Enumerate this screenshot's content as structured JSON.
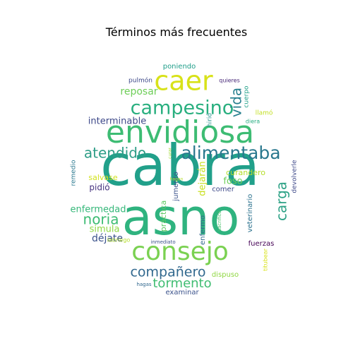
{
  "chart_data": {
    "type": "wordcloud",
    "title": "Términos más frecuentes",
    "words": [
      {
        "text": "cabra",
        "color": "#21a08a"
      },
      {
        "text": "asno",
        "color": "#2fb37f"
      },
      {
        "text": "envidiosa",
        "color": "#3dbc73"
      },
      {
        "text": "consejo",
        "color": "#7ad151"
      },
      {
        "text": "caer",
        "color": "#d8e219"
      },
      {
        "text": "campesino",
        "color": "#29af7f"
      },
      {
        "text": "alimentaba",
        "color": "#2a788e"
      },
      {
        "text": "atendido",
        "color": "#2e9d87"
      },
      {
        "text": "compañero",
        "color": "#31688e"
      },
      {
        "text": "noria",
        "color": "#3dbc73"
      },
      {
        "text": "carga",
        "color": "#2ea286"
      },
      {
        "text": "tormento",
        "color": "#40bd72"
      },
      {
        "text": "vida",
        "color": "#277f8e"
      },
      {
        "text": "interminable",
        "color": "#3e4989"
      },
      {
        "text": "reposar",
        "color": "#6ece58"
      },
      {
        "text": "enfermedad",
        "color": "#35b779"
      },
      {
        "text": "simula",
        "color": "#8fd744"
      },
      {
        "text": "déjate",
        "color": "#3b528b"
      },
      {
        "text": "dejarán",
        "color": "#c8e020"
      },
      {
        "text": "curandero",
        "color": "#b5de2b"
      },
      {
        "text": "foso",
        "color": "#6ece58"
      },
      {
        "text": "salvase",
        "color": "#d2e21b"
      },
      {
        "text": "pidió",
        "color": "#46327e"
      },
      {
        "text": "remedio",
        "color": "#2a788e"
      },
      {
        "text": "jumento",
        "color": "#3b528b"
      },
      {
        "text": "práctica",
        "color": "#5ec962"
      },
      {
        "text": "enfermo",
        "color": "#31688e"
      },
      {
        "text": "comer",
        "color": "#3e4989"
      },
      {
        "text": "veterinario",
        "color": "#2c728e"
      },
      {
        "text": "devolverle",
        "color": "#3e4989"
      },
      {
        "text": "fuerzas",
        "color": "#440154"
      },
      {
        "text": "labriego",
        "color": "#b5de2b"
      },
      {
        "text": "inmediato",
        "color": "#3b528b"
      },
      {
        "text": "sacrificó",
        "color": "#4ac16d"
      },
      {
        "text": "titubear",
        "color": "#d8e219"
      },
      {
        "text": "dispuso",
        "color": "#90d743"
      },
      {
        "text": "examinar",
        "color": "#3b528b"
      },
      {
        "text": "hagas",
        "color": "#31688e"
      },
      {
        "text": "hagan",
        "color": "#b5de2b"
      },
      {
        "text": "curar",
        "color": "#a0da39"
      },
      {
        "text": "hirió",
        "color": "#21918c"
      },
      {
        "text": "llamó",
        "color": "#c2df23"
      },
      {
        "text": "diera",
        "color": "#27ad81"
      },
      {
        "text": "cuerpo",
        "color": "#1fa088"
      },
      {
        "text": "quieres",
        "color": "#482878"
      },
      {
        "text": "pulmón",
        "color": "#3e4989"
      },
      {
        "text": "poniendo",
        "color": "#1f9e89"
      }
    ]
  }
}
